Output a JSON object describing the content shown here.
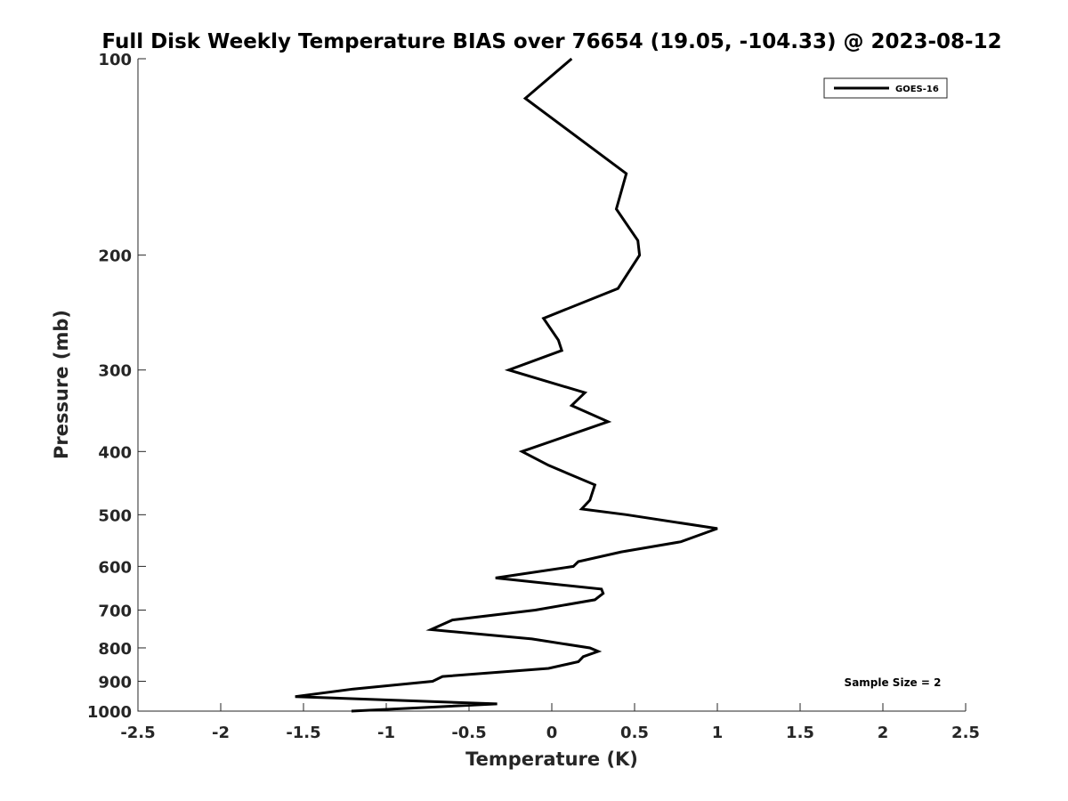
{
  "chart_data": {
    "type": "line",
    "title": "Full Disk Weekly Temperature BIAS over 76654 (19.05, -104.33) @ 2023-08-12",
    "xlabel": "Temperature (K)",
    "ylabel": "Pressure (mb)",
    "xlim": [
      -2.5,
      2.5
    ],
    "ylim": [
      1000,
      100
    ],
    "y_scale": "log",
    "y_reversed": true,
    "x_ticks": [
      "-2.5",
      "-2",
      "-1.5",
      "-1",
      "-0.5",
      "0",
      "0.5",
      "1",
      "1.5",
      "2",
      "2.5"
    ],
    "y_ticks": [
      "100",
      "200",
      "300",
      "400",
      "500",
      "600",
      "700",
      "800",
      "900",
      "1000"
    ],
    "grid": false,
    "legend_position": "top-right",
    "annotation": "Sample Size = 2",
    "series": [
      {
        "name": "GOES-16",
        "color": "#000000",
        "points": [
          {
            "x": 0.12,
            "p": 100
          },
          {
            "x": -0.16,
            "p": 115
          },
          {
            "x": 0.45,
            "p": 150
          },
          {
            "x": 0.39,
            "p": 170
          },
          {
            "x": 0.52,
            "p": 190
          },
          {
            "x": 0.53,
            "p": 200
          },
          {
            "x": 0.4,
            "p": 225
          },
          {
            "x": -0.05,
            "p": 250
          },
          {
            "x": 0.04,
            "p": 270
          },
          {
            "x": 0.06,
            "p": 280
          },
          {
            "x": -0.26,
            "p": 300
          },
          {
            "x": 0.2,
            "p": 325
          },
          {
            "x": 0.12,
            "p": 340
          },
          {
            "x": 0.34,
            "p": 360
          },
          {
            "x": -0.18,
            "p": 400
          },
          {
            "x": -0.02,
            "p": 420
          },
          {
            "x": 0.26,
            "p": 450
          },
          {
            "x": 0.23,
            "p": 475
          },
          {
            "x": 0.18,
            "p": 490
          },
          {
            "x": 0.45,
            "p": 500
          },
          {
            "x": 1.0,
            "p": 525
          },
          {
            "x": 0.78,
            "p": 550
          },
          {
            "x": 0.42,
            "p": 570
          },
          {
            "x": 0.16,
            "p": 590
          },
          {
            "x": 0.13,
            "p": 600
          },
          {
            "x": -0.34,
            "p": 625
          },
          {
            "x": 0.3,
            "p": 650
          },
          {
            "x": 0.31,
            "p": 660
          },
          {
            "x": 0.26,
            "p": 675
          },
          {
            "x": -0.1,
            "p": 700
          },
          {
            "x": -0.6,
            "p": 725
          },
          {
            "x": -0.73,
            "p": 750
          },
          {
            "x": -0.12,
            "p": 775
          },
          {
            "x": 0.23,
            "p": 800
          },
          {
            "x": 0.28,
            "p": 810
          },
          {
            "x": 0.19,
            "p": 825
          },
          {
            "x": 0.16,
            "p": 840
          },
          {
            "x": -0.02,
            "p": 860
          },
          {
            "x": -0.66,
            "p": 885
          },
          {
            "x": -0.72,
            "p": 900
          },
          {
            "x": -1.2,
            "p": 925
          },
          {
            "x": -1.55,
            "p": 950
          },
          {
            "x": -0.33,
            "p": 975
          },
          {
            "x": -1.21,
            "p": 1000
          }
        ]
      }
    ]
  }
}
